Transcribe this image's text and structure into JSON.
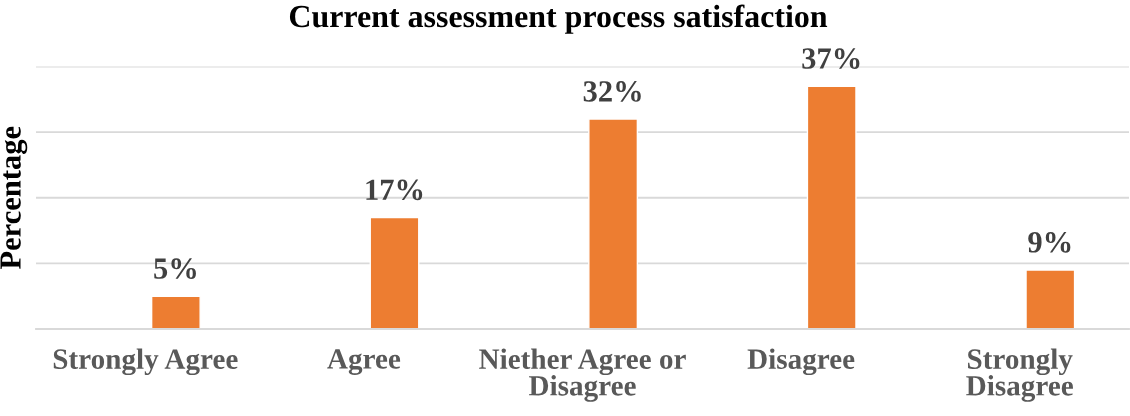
{
  "chart_data": {
    "type": "bar",
    "title": "Current assessment process satisfaction",
    "ylabel": "Percentage",
    "categories": [
      "Strongly Agree",
      "Agree",
      "Niether Agree or Disagree",
      "Disagree",
      "Strongly Disagree"
    ],
    "values": [
      5,
      17,
      32,
      37,
      9
    ],
    "color": "#ed7d31",
    "value_labels": [
      "5%",
      "17%",
      "32%",
      "37%",
      "9%"
    ],
    "ylim": [
      0,
      40
    ],
    "yticks": [
      {
        "value": 0,
        "label": null
      },
      {
        "value": 10,
        "label": null
      },
      {
        "value": 20,
        "label": null
      },
      {
        "value": 30,
        "label": null
      },
      {
        "value": 40,
        "label": null
      }
    ],
    "grid": "y",
    "tick_labels": "x"
  }
}
